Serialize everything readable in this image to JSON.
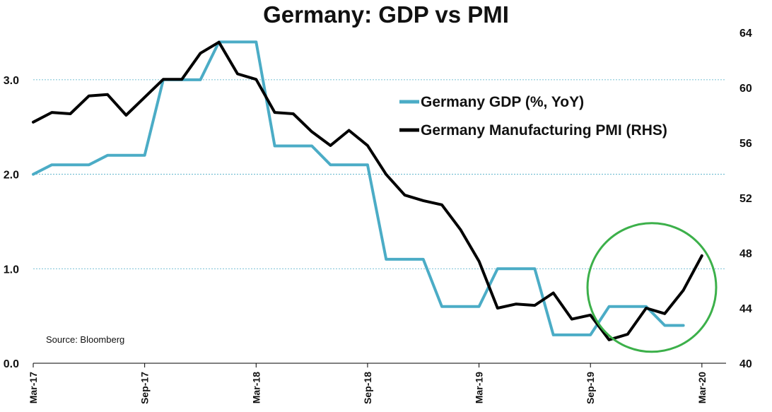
{
  "chart_data": {
    "type": "line",
    "title": "Germany: GDP vs PMI",
    "source": "Source: Bloomberg",
    "x": [
      "Mar-17",
      "Apr-17",
      "May-17",
      "Jun-17",
      "Jul-17",
      "Aug-17",
      "Sep-17",
      "Oct-17",
      "Nov-17",
      "Dec-17",
      "Jan-18",
      "Feb-18",
      "Mar-18",
      "Apr-18",
      "May-18",
      "Jun-18",
      "Jul-18",
      "Aug-18",
      "Sep-18",
      "Oct-18",
      "Nov-18",
      "Dec-18",
      "Jan-19",
      "Feb-19",
      "Mar-19",
      "Apr-19",
      "May-19",
      "Jun-19",
      "Jul-19",
      "Aug-19",
      "Sep-19",
      "Oct-19",
      "Nov-19",
      "Dec-19",
      "Jan-20",
      "Feb-20",
      "Mar-20"
    ],
    "x_tick_labels": [
      "Mar-17",
      "Sep-17",
      "Mar-18",
      "Sep-18",
      "Mar-19",
      "Sep-19",
      "Mar-20"
    ],
    "left_axis": {
      "ticks": [
        "0.0",
        "1.0",
        "2.0",
        "3.0"
      ],
      "ylim": [
        0,
        3.5
      ],
      "grid": true
    },
    "right_axis": {
      "ticks": [
        "40",
        "44",
        "48",
        "52",
        "56",
        "60",
        "64"
      ],
      "ylim": [
        40,
        64
      ]
    },
    "series": [
      {
        "name": "Germany GDP (%, YoY)",
        "axis": "left",
        "color": "#4bacc6",
        "values": [
          2.0,
          2.1,
          2.1,
          2.1,
          2.2,
          2.2,
          2.2,
          3.0,
          3.0,
          3.0,
          3.4,
          3.4,
          3.4,
          2.3,
          2.3,
          2.3,
          2.1,
          2.1,
          2.1,
          1.1,
          1.1,
          1.1,
          0.6,
          0.6,
          0.6,
          1.0,
          1.0,
          1.0,
          0.3,
          0.3,
          0.3,
          0.6,
          0.6,
          0.6,
          0.4,
          0.4,
          null
        ]
      },
      {
        "name": "Germany Manufacturing PMI (RHS)",
        "axis": "right",
        "color": "#000000",
        "values": [
          57.5,
          58.2,
          58.1,
          59.4,
          59.5,
          58.0,
          59.3,
          60.6,
          60.6,
          62.5,
          63.3,
          61.0,
          60.6,
          58.2,
          58.1,
          56.8,
          55.8,
          56.9,
          55.8,
          53.7,
          52.2,
          51.8,
          51.5,
          49.7,
          47.4,
          44.0,
          44.3,
          44.2,
          45.1,
          43.2,
          43.5,
          41.7,
          42.1,
          44.0,
          43.6,
          45.3,
          47.8
        ]
      }
    ],
    "legend": {
      "position": "right"
    },
    "annotations": [
      {
        "shape": "circle",
        "color": "#3cb04a"
      }
    ]
  }
}
